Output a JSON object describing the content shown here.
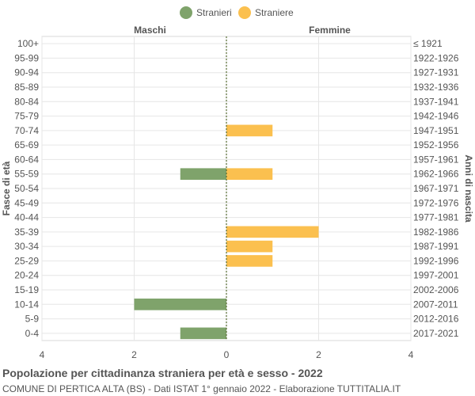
{
  "chart_data": {
    "type": "bar",
    "orientation": "horizontal",
    "title": "Popolazione per cittadinanza straniera per età e sesso - 2022",
    "subtitle": "COMUNE DI PERTICA ALTA (BS) - Dati ISTAT 1° gennaio 2022 - Elaborazione TUTTITALIA.IT",
    "ylabel_left": "Fasce di età",
    "ylabel_right": "Anni di nascita",
    "left_header": "Maschi",
    "right_header": "Femmine",
    "age_groups": [
      "100+",
      "95-99",
      "90-94",
      "85-89",
      "80-84",
      "75-79",
      "70-74",
      "65-69",
      "60-64",
      "55-59",
      "50-54",
      "45-49",
      "40-44",
      "35-39",
      "30-34",
      "25-29",
      "20-24",
      "15-19",
      "10-14",
      "5-9",
      "0-4"
    ],
    "birth_years": [
      "≤ 1921",
      "1922-1926",
      "1927-1931",
      "1932-1936",
      "1937-1941",
      "1942-1946",
      "1947-1951",
      "1952-1956",
      "1957-1961",
      "1962-1966",
      "1967-1971",
      "1972-1976",
      "1977-1981",
      "1982-1986",
      "1987-1991",
      "1992-1996",
      "1997-2001",
      "2002-2006",
      "2007-2011",
      "2012-2016",
      "2017-2021"
    ],
    "series": [
      {
        "name": "Stranieri",
        "color": "#7fa36b",
        "values": [
          0,
          0,
          0,
          0,
          0,
          0,
          0,
          0,
          0,
          1,
          0,
          0,
          0,
          0,
          0,
          0,
          0,
          0,
          2,
          0,
          1
        ]
      },
      {
        "name": "Straniere",
        "color": "#fbc04f",
        "values": [
          0,
          0,
          0,
          0,
          0,
          0,
          1,
          0,
          0,
          1,
          0,
          0,
          0,
          2,
          1,
          1,
          0,
          0,
          0,
          0,
          0
        ]
      }
    ],
    "x_ticks": [
      "4",
      "2",
      "0",
      "2",
      "4"
    ],
    "xlim": [
      -4,
      4
    ],
    "grid": true,
    "legend_position": "top"
  }
}
